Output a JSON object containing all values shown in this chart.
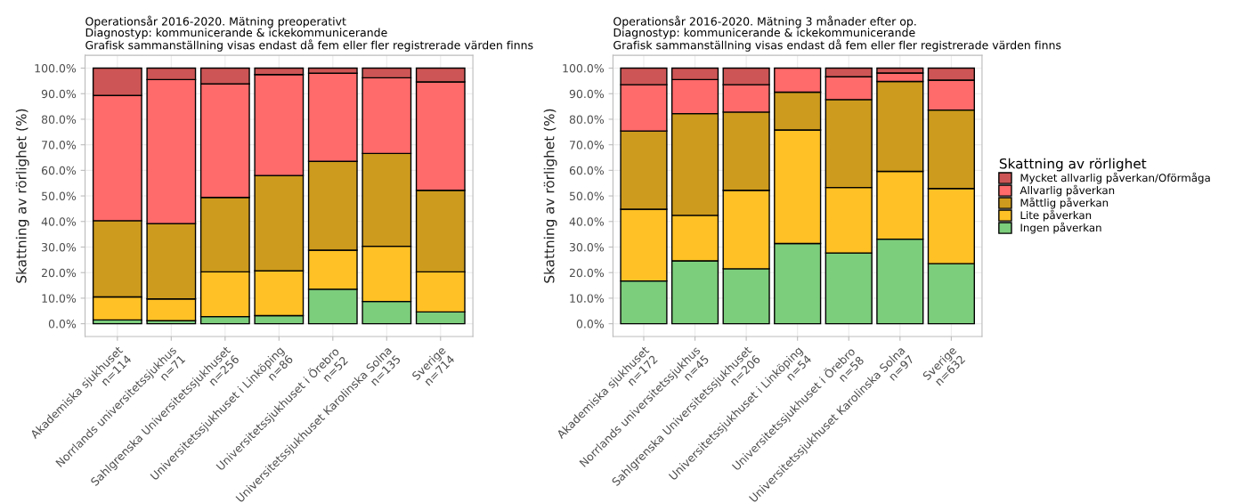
{
  "chart_data": [
    {
      "type": "bar",
      "stacked": true,
      "title": "Operationsår 2016-2020. Mätning preoperativt",
      "subtitle": "Diagnostyp: kommunicerande & ickekommunicerande\nGrafisk sammanställning visas endast då fem eller fler registrerade värden finns",
      "ylabel": "Skattning av rörlighet (%)",
      "categories": [
        "Akademiska sjukhuset\nn=114",
        "Norrlands universitetssjukhus\nn=71",
        "Sahlgrenska Universitetssjukhuset\nn=256",
        "Universitetssjukhuset i Linköping\nn=86",
        "Universitetssjukhuset i Örebro\nn=52",
        "Universitetssjukhuset Karolinska Solna\nn=135",
        "Sverige\nn=714"
      ],
      "series": [
        {
          "color": "#7ccd7c",
          "values": [
            1.5,
            1.2,
            2.8,
            3.2,
            13.5,
            8.7,
            4.6
          ]
        },
        {
          "color": "#ffc125",
          "values": [
            9.0,
            8.5,
            17.5,
            17.5,
            15.3,
            21.6,
            15.7
          ]
        },
        {
          "color": "#cd9b1d",
          "values": [
            29.8,
            29.5,
            29.1,
            37.3,
            34.7,
            36.3,
            31.9
          ]
        },
        {
          "color": "#ff6a6a",
          "values": [
            49.0,
            56.3,
            44.4,
            39.5,
            34.5,
            29.6,
            42.4
          ]
        },
        {
          "color": "#cd5555",
          "values": [
            10.7,
            4.5,
            6.2,
            2.5,
            2.0,
            3.8,
            5.4
          ]
        }
      ],
      "ylim": [
        -5,
        105
      ],
      "yticks": [
        {
          "value": 0,
          "label": "0.0%"
        },
        {
          "value": 10,
          "label": "10.0%"
        },
        {
          "value": 20,
          "label": "20.0%"
        },
        {
          "value": 30,
          "label": "30.0%"
        },
        {
          "value": 40,
          "label": "40.0%"
        },
        {
          "value": 50,
          "label": "50.0%"
        },
        {
          "value": 60,
          "label": "60.0%"
        },
        {
          "value": 70,
          "label": "70.0%"
        },
        {
          "value": 80,
          "label": "80.0%"
        },
        {
          "value": 90,
          "label": "90.0%"
        },
        {
          "value": 100,
          "label": "100.0%"
        }
      ],
      "grid": true
    },
    {
      "type": "bar",
      "stacked": true,
      "title": "Operationsår 2016-2020. Mätning 3 månader efter op.",
      "subtitle": "Diagnostyp: kommunicerande & ickekommunicerande\nGrafisk sammanställning visas endast då fem eller fler registrerade värden finns",
      "ylabel": "Skattning av rörlighet (%)",
      "legend_title": "Skattning av rörlighet",
      "categories": [
        "Akademiska sjukhuset\nn=172",
        "Norrlands universitetssjukhus\nn=45",
        "Sahlgrenska Universitetssjukhuset\nn=206",
        "Universitetssjukhuset i Linköping\nn=54",
        "Universitetssjukhuset i Örebro\nn=58",
        "Universitetssjukhuset Karolinska Solna\nn=97",
        "Sverige\nn=632"
      ],
      "series": [
        {
          "name": "Ingen påverkan",
          "color": "#7ccd7c",
          "values": [
            16.7,
            24.6,
            21.5,
            31.4,
            27.7,
            33.1,
            23.5
          ]
        },
        {
          "name": "Lite påverkan",
          "color": "#ffc125",
          "values": [
            28.1,
            17.8,
            30.7,
            44.4,
            25.6,
            26.5,
            29.4
          ]
        },
        {
          "name": "Måttlig påverkan",
          "color": "#cd9b1d",
          "values": [
            30.6,
            39.8,
            30.6,
            14.8,
            34.4,
            35.2,
            30.7
          ]
        },
        {
          "name": "Allvarlig påverkan",
          "color": "#ff6a6a",
          "values": [
            18.1,
            13.3,
            10.7,
            9.4,
            8.9,
            3.3,
            11.7
          ]
        },
        {
          "name": "Mycket allvarlig påverkan/Oförmåga",
          "color": "#cd5555",
          "values": [
            6.5,
            4.5,
            6.5,
            null,
            3.4,
            1.9,
            4.7
          ]
        }
      ],
      "ylim": [
        -5,
        105
      ],
      "yticks": [
        {
          "value": 0,
          "label": "0.0%"
        },
        {
          "value": 10,
          "label": "10.0%"
        },
        {
          "value": 20,
          "label": "20.0%"
        },
        {
          "value": 30,
          "label": "30.0%"
        },
        {
          "value": 40,
          "label": "40.0%"
        },
        {
          "value": 50,
          "label": "50.0%"
        },
        {
          "value": 60,
          "label": "60.0%"
        },
        {
          "value": 70,
          "label": "70.0%"
        },
        {
          "value": 80,
          "label": "80.0%"
        },
        {
          "value": 90,
          "label": "90.0%"
        },
        {
          "value": 100,
          "label": "100.0%"
        }
      ],
      "grid": true,
      "legend": "right"
    }
  ]
}
